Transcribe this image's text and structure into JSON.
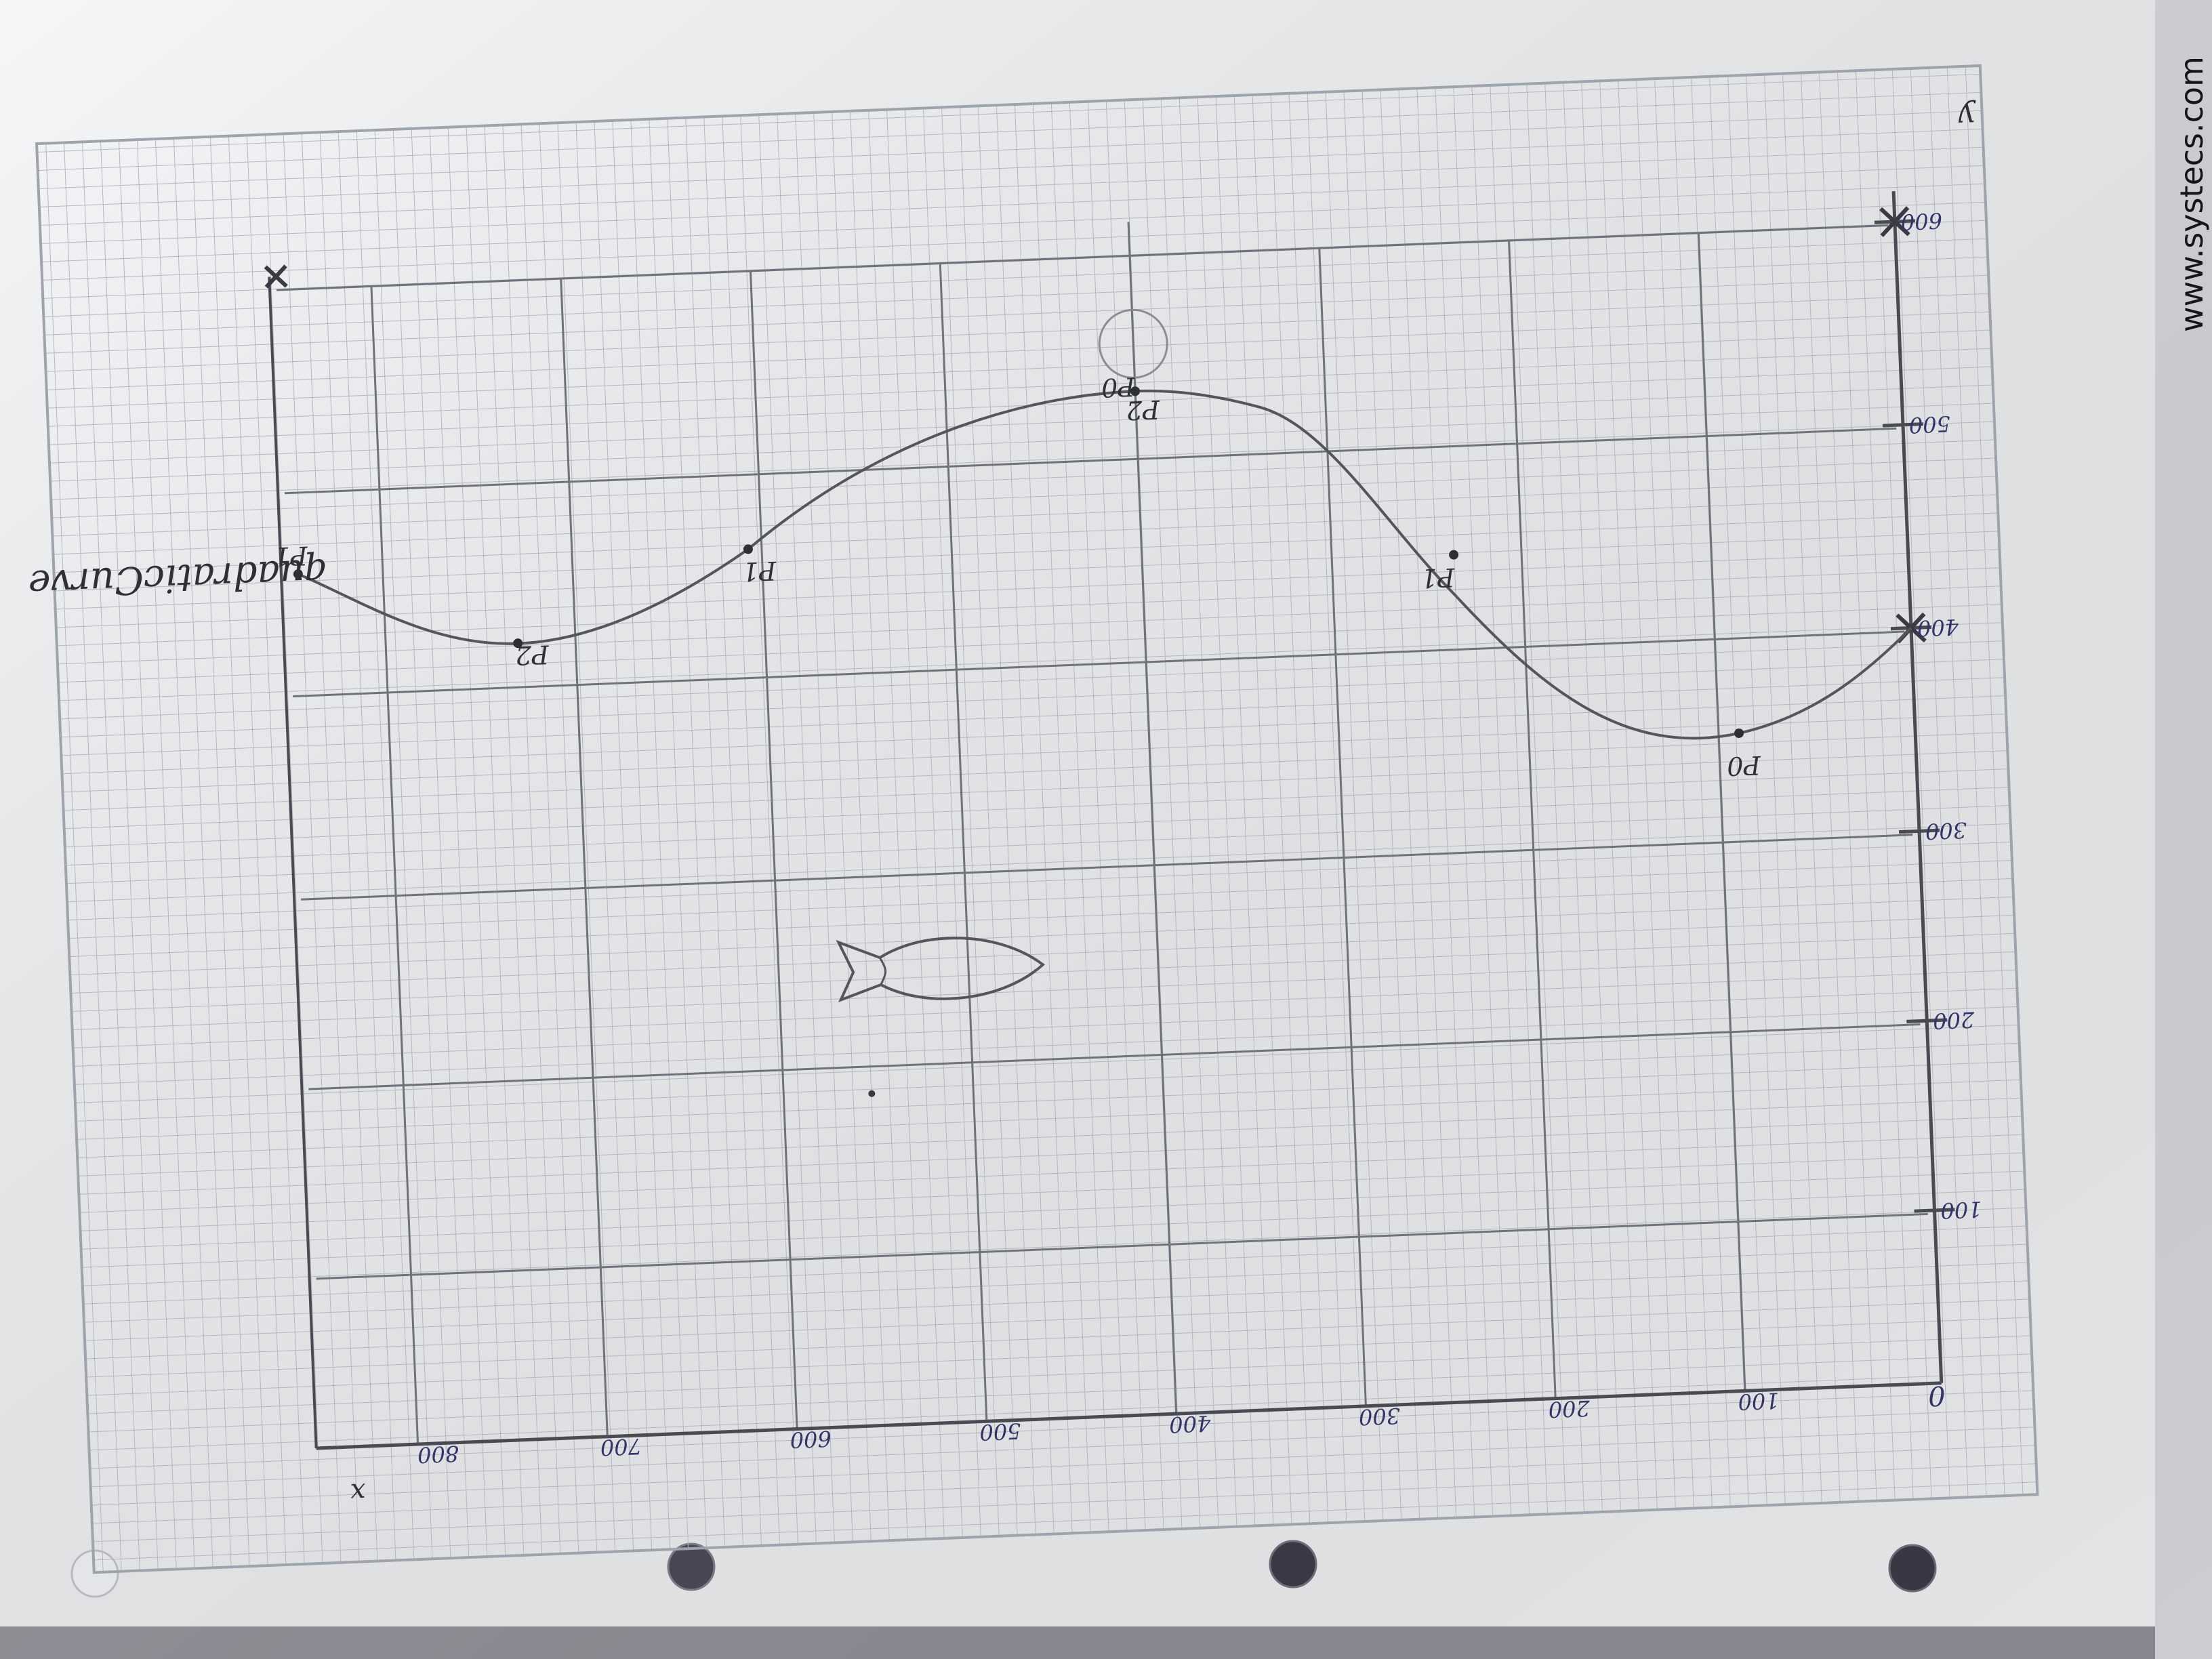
{
  "photo": {
    "subject": "hand-drawn graph of a quadratic curve on grid paper",
    "paper_color": "#f2f3f5",
    "grid_color": "#9ea4ab",
    "pencil_color": "#4a4a52",
    "ink_color": "#33336a",
    "brand_text": "www.systecs.com",
    "curve_title": "quadraticCurve",
    "origin_label": "0",
    "x_axis_label": "x",
    "y_axis_label": "y",
    "x_ticks": [
      "100",
      "200",
      "300",
      "400",
      "500",
      "600",
      "700",
      "800"
    ],
    "y_ticks": [
      "100",
      "200",
      "300",
      "400",
      "500",
      "600"
    ],
    "point_labels": [
      "P0",
      "P1",
      "P2",
      "P1",
      "P2",
      "P1",
      "P0"
    ]
  }
}
